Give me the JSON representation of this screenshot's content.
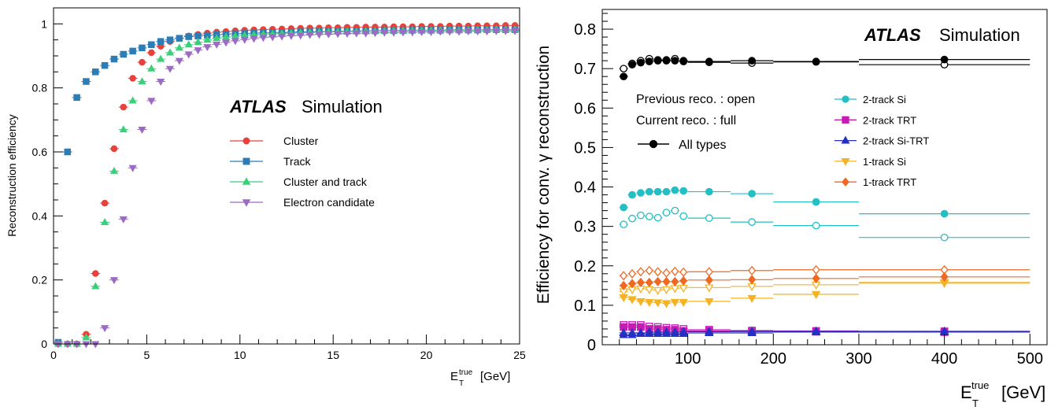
{
  "chart_data": [
    {
      "type": "scatter",
      "watermark": {
        "bold": "ATLAS",
        "rest": "Simulation"
      },
      "xlabel": {
        "main": "E",
        "sub": "T",
        "sup": "true",
        "unit": "[GeV]"
      },
      "ylabel": "Reconstruction efficiency",
      "xlim": [
        0,
        25
      ],
      "ylim": [
        0,
        1.05
      ],
      "xticks": [
        "0",
        "5",
        "10",
        "15",
        "20",
        "25"
      ],
      "yticks": [
        "0",
        "0.2",
        "0.4",
        "0.6",
        "0.8",
        "1"
      ],
      "legend_position": "center-right",
      "series": [
        {
          "name": "Cluster",
          "color": "#e8413b",
          "marker": "circle",
          "x": [
            0.25,
            0.75,
            1.25,
            1.75,
            2.25,
            2.75,
            3.25,
            3.75,
            4.25,
            4.75,
            5.25,
            5.75,
            6.25,
            6.75,
            7.25,
            7.75,
            8.25,
            8.75,
            9.25,
            9.75,
            10.25,
            10.75,
            11.25,
            11.75,
            12.25,
            12.75,
            13.25,
            13.75,
            14.25,
            14.75,
            15.25,
            15.75,
            16.25,
            16.75,
            17.25,
            17.75,
            18.25,
            18.75,
            19.25,
            19.75,
            20.25,
            20.75,
            21.25,
            21.75,
            22.25,
            22.75,
            23.25,
            23.75,
            24.25,
            24.75
          ],
          "y": [
            0,
            0,
            0,
            0.03,
            0.22,
            0.44,
            0.61,
            0.74,
            0.83,
            0.88,
            0.91,
            0.93,
            0.945,
            0.955,
            0.962,
            0.967,
            0.971,
            0.974,
            0.976,
            0.978,
            0.98,
            0.981,
            0.982,
            0.983,
            0.984,
            0.985,
            0.986,
            0.987,
            0.987,
            0.988,
            0.988,
            0.989,
            0.989,
            0.99,
            0.99,
            0.99,
            0.991,
            0.991,
            0.991,
            0.992,
            0.992,
            0.992,
            0.993,
            0.993,
            0.993,
            0.994,
            0.994,
            0.994,
            0.995,
            0.995
          ]
        },
        {
          "name": "Track",
          "color": "#2d7cb5",
          "marker": "square",
          "x": [
            0.25,
            0.75,
            1.25,
            1.75,
            2.25,
            2.75,
            3.25,
            3.75,
            4.25,
            4.75,
            5.25,
            5.75,
            6.25,
            6.75,
            7.25,
            7.75,
            8.25,
            8.75,
            9.25,
            9.75,
            10.25,
            10.75,
            11.25,
            11.75,
            12.25,
            12.75,
            13.25,
            13.75,
            14.25,
            14.75,
            15.25,
            15.75,
            16.25,
            16.75,
            17.25,
            17.75,
            18.25,
            18.75,
            19.25,
            19.75,
            20.25,
            20.75,
            21.25,
            21.75,
            22.25,
            22.75,
            23.25,
            23.75,
            24.25,
            24.75
          ],
          "y": [
            0.005,
            0.6,
            0.77,
            0.82,
            0.85,
            0.87,
            0.89,
            0.905,
            0.915,
            0.925,
            0.935,
            0.945,
            0.95,
            0.955,
            0.96,
            0.962,
            0.964,
            0.966,
            0.968,
            0.969,
            0.97,
            0.971,
            0.972,
            0.973,
            0.973,
            0.974,
            0.975,
            0.975,
            0.976,
            0.976,
            0.977,
            0.977,
            0.978,
            0.978,
            0.978,
            0.979,
            0.979,
            0.979,
            0.98,
            0.98,
            0.98,
            0.98,
            0.981,
            0.981,
            0.981,
            0.981,
            0.982,
            0.982,
            0.982,
            0.982
          ]
        },
        {
          "name": "Cluster and track",
          "color": "#3ccf7a",
          "marker": "triangle-up",
          "x": [
            0.25,
            0.75,
            1.25,
            1.75,
            2.25,
            2.75,
            3.25,
            3.75,
            4.25,
            4.75,
            5.25,
            5.75,
            6.25,
            6.75,
            7.25,
            7.75,
            8.25,
            8.75,
            9.25,
            9.75,
            10.25,
            10.75,
            11.25,
            11.75,
            12.25,
            12.75,
            13.25,
            13.75,
            14.25,
            14.75,
            15.25,
            15.75,
            16.25,
            16.75,
            17.25,
            17.75,
            18.25,
            18.75,
            19.25,
            19.75,
            20.25,
            20.75,
            21.25,
            21.75,
            22.25,
            22.75,
            23.25,
            23.75,
            24.25,
            24.75
          ],
          "y": [
            0,
            0,
            0,
            0.02,
            0.18,
            0.38,
            0.54,
            0.67,
            0.76,
            0.82,
            0.86,
            0.89,
            0.91,
            0.925,
            0.935,
            0.943,
            0.95,
            0.955,
            0.959,
            0.962,
            0.964,
            0.966,
            0.968,
            0.969,
            0.97,
            0.971,
            0.972,
            0.973,
            0.974,
            0.975,
            0.975,
            0.976,
            0.976,
            0.977,
            0.977,
            0.978,
            0.978,
            0.978,
            0.979,
            0.979,
            0.979,
            0.98,
            0.98,
            0.98,
            0.981,
            0.981,
            0.981,
            0.982,
            0.982,
            0.982
          ]
        },
        {
          "name": "Electron candidate",
          "color": "#9b6bc5",
          "marker": "triangle-down",
          "x": [
            0.25,
            0.75,
            1.25,
            1.75,
            2.25,
            2.75,
            3.25,
            3.75,
            4.25,
            4.75,
            5.25,
            5.75,
            6.25,
            6.75,
            7.25,
            7.75,
            8.25,
            8.75,
            9.25,
            9.75,
            10.25,
            10.75,
            11.25,
            11.75,
            12.25,
            12.75,
            13.25,
            13.75,
            14.25,
            14.75,
            15.25,
            15.75,
            16.25,
            16.75,
            17.25,
            17.75,
            18.25,
            18.75,
            19.25,
            19.75,
            20.25,
            20.75,
            21.25,
            21.75,
            22.25,
            22.75,
            23.25,
            23.75,
            24.25,
            24.75
          ],
          "y": [
            0,
            0,
            0,
            0,
            0,
            0.05,
            0.2,
            0.39,
            0.55,
            0.67,
            0.76,
            0.82,
            0.86,
            0.885,
            0.905,
            0.918,
            0.928,
            0.936,
            0.942,
            0.947,
            0.951,
            0.954,
            0.957,
            0.959,
            0.961,
            0.963,
            0.964,
            0.966,
            0.967,
            0.968,
            0.969,
            0.97,
            0.971,
            0.971,
            0.972,
            0.973,
            0.973,
            0.974,
            0.974,
            0.975,
            0.975,
            0.976,
            0.976,
            0.976,
            0.977,
            0.977,
            0.977,
            0.978,
            0.978,
            0.978
          ]
        }
      ]
    },
    {
      "type": "scatter",
      "watermark": {
        "bold": "ATLAS",
        "rest": "Simulation"
      },
      "xlabel": {
        "main": "E",
        "sub": "T",
        "sup": "true",
        "unit": "[GeV]"
      },
      "ylabel": "Efficiency for conv. γ reconstruction",
      "xlim": [
        0,
        520
      ],
      "ylim": [
        0,
        0.85
      ],
      "xticks": [
        "100",
        "200",
        "300",
        "400",
        "500"
      ],
      "yticks": [
        "0",
        "0.1",
        "0.2",
        "0.3",
        "0.4",
        "0.5",
        "0.6",
        "0.7",
        "0.8"
      ],
      "legend_position": "upper-center",
      "legend_text": {
        "previous": "Previous reco. : open",
        "current": "Current reco.   : full"
      },
      "bins": [
        [
          20,
          30
        ],
        [
          30,
          40
        ],
        [
          40,
          50
        ],
        [
          50,
          60
        ],
        [
          60,
          70
        ],
        [
          70,
          80
        ],
        [
          80,
          90
        ],
        [
          90,
          100
        ],
        [
          100,
          150
        ],
        [
          150,
          200
        ],
        [
          200,
          300
        ],
        [
          300,
          500
        ]
      ],
      "series": [
        {
          "name": "All types",
          "color": "#000000",
          "marker": "circle",
          "current": [
            0.68,
            0.71,
            0.715,
            0.718,
            0.72,
            0.72,
            0.72,
            0.718,
            0.718,
            0.72,
            0.717,
            0.723
          ],
          "previous": [
            0.7,
            0.713,
            0.72,
            0.725,
            0.722,
            0.722,
            0.725,
            0.72,
            0.716,
            0.714,
            0.718,
            0.71
          ]
        },
        {
          "name": "2-track Si",
          "color": "#22bfc4",
          "marker": "circle",
          "current": [
            0.348,
            0.38,
            0.385,
            0.388,
            0.388,
            0.388,
            0.392,
            0.39,
            0.388,
            0.383,
            0.362,
            0.332
          ],
          "previous": [
            0.305,
            0.32,
            0.328,
            0.325,
            0.322,
            0.335,
            0.34,
            0.326,
            0.321,
            0.311,
            0.302,
            0.272
          ]
        },
        {
          "name": "2-track TRT",
          "color": "#c71bb4",
          "marker": "square",
          "current": [
            0.045,
            0.045,
            0.045,
            0.04,
            0.04,
            0.038,
            0.038,
            0.035,
            0.035,
            0.033,
            0.033,
            0.032
          ],
          "previous": [
            0.05,
            0.05,
            0.05,
            0.046,
            0.045,
            0.043,
            0.042,
            0.04,
            0.038,
            0.036,
            0.035,
            0.034
          ]
        },
        {
          "name": "2-track Si-TRT",
          "color": "#2530c2",
          "marker": "triangle-up",
          "current": [
            0.025,
            0.025,
            0.028,
            0.028,
            0.028,
            0.028,
            0.028,
            0.028,
            0.03,
            0.03,
            0.032,
            0.032
          ],
          "previous": [
            0.03,
            0.03,
            0.03,
            0.032,
            0.032,
            0.032,
            0.032,
            0.033,
            0.033,
            0.034,
            0.034,
            0.034
          ]
        },
        {
          "name": "1-track Si",
          "color": "#f5b324",
          "marker": "triangle-down",
          "current": [
            0.12,
            0.115,
            0.11,
            0.108,
            0.107,
            0.105,
            0.108,
            0.108,
            0.11,
            0.118,
            0.128,
            0.158
          ],
          "previous": [
            0.135,
            0.14,
            0.142,
            0.14,
            0.138,
            0.14,
            0.143,
            0.144,
            0.145,
            0.148,
            0.152,
            0.156
          ]
        },
        {
          "name": "1-track TRT",
          "color": "#ee6a24",
          "marker": "diamond",
          "current": [
            0.15,
            0.155,
            0.158,
            0.158,
            0.16,
            0.16,
            0.16,
            0.162,
            0.164,
            0.165,
            0.168,
            0.172
          ],
          "previous": [
            0.175,
            0.18,
            0.185,
            0.188,
            0.185,
            0.182,
            0.186,
            0.184,
            0.185,
            0.188,
            0.19,
            0.19
          ]
        }
      ]
    }
  ]
}
